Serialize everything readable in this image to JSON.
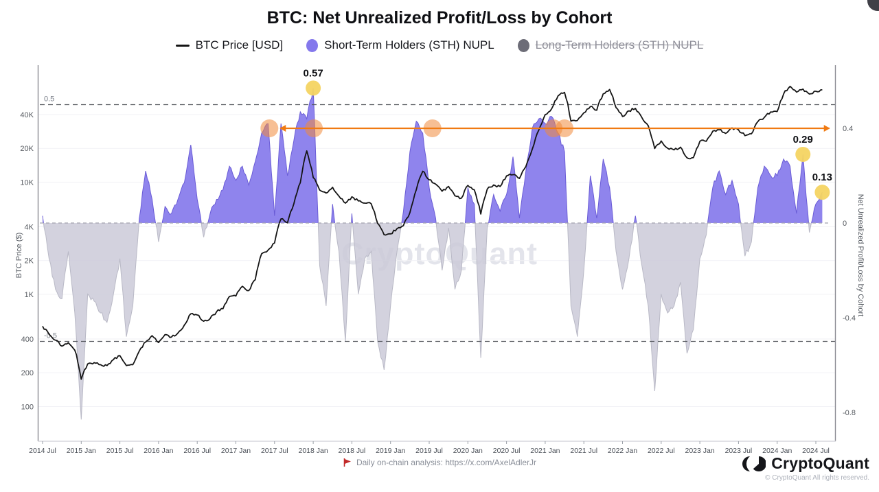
{
  "header": {
    "title": "BTC: Net Unrealized Profit/Loss by Cohort"
  },
  "legend": {
    "items": [
      {
        "label": "BTC Price [USD]",
        "marker": "line",
        "color": "#141414",
        "disabled": false
      },
      {
        "label": "Short-Term Holders (STH) NUPL",
        "marker": "circle",
        "color": "#8478ec",
        "disabled": false
      },
      {
        "label": "Long-Term Holders (STH) NUPL",
        "marker": "circle",
        "color": "#6d6d78",
        "disabled": true
      }
    ]
  },
  "watermark": "CryptoQuant",
  "footer": {
    "icon": "red-flag-icon",
    "text": "Daily on-chain analysis: https://x.com/AxelAdlerJr"
  },
  "branding": {
    "name": "CryptoQuant",
    "copyright": "© CryptoQuant All rights reserved."
  },
  "chart_data": {
    "type": "composite",
    "x_start": "2014-07",
    "x_freq": "monthly",
    "x_tick_labels": [
      "2014 Jul",
      "2015 Jan",
      "2015 Jul",
      "2016 Jan",
      "2016 Jul",
      "2017 Jan",
      "2017 Jul",
      "2018 Jan",
      "2018 Jul",
      "2019 Jan",
      "2019 Jul",
      "2020 Jan",
      "2020 Jul",
      "2021 Jan",
      "2021 Jul",
      "2022 Jan",
      "2022 Jul",
      "2023 Jan",
      "2023 Jul",
      "2024 Jan",
      "2024 Jul"
    ],
    "x_tick_month_index": [
      0,
      6,
      12,
      18,
      24,
      30,
      36,
      42,
      48,
      54,
      60,
      66,
      72,
      78,
      84,
      90,
      96,
      102,
      108,
      114,
      120
    ],
    "left_axis": {
      "title": "BTC Price ($)",
      "scale": "log",
      "ticks": [
        "100",
        "200",
        "400",
        "1K",
        "2K",
        "4K",
        "10K",
        "20K",
        "40K"
      ],
      "tick_values": [
        100,
        200,
        400,
        1000,
        2000,
        4000,
        10000,
        20000,
        40000
      ]
    },
    "right_axis": {
      "title": "Net Unrealized Profit/Loss by Cohort",
      "ticks": [
        "0.4",
        "0",
        "-0.4",
        "-0.8"
      ],
      "tick_values": [
        0.4,
        0,
        -0.4,
        -0.8
      ]
    },
    "series": [
      {
        "name": "BTC Price [USD]",
        "type": "line",
        "axis": "left",
        "color": "#141414",
        "values": [
          520,
          440,
          390,
          345,
          370,
          318,
          175,
          240,
          246,
          236,
          232,
          262,
          284,
          232,
          236,
          312,
          376,
          428,
          372,
          438,
          416,
          452,
          532,
          670,
          655,
          576,
          608,
          700,
          744,
          958,
          966,
          1180,
          1080,
          1350,
          2300,
          2480,
          2870,
          4700,
          4340,
          6450,
          9900,
          19000,
          11000,
          8500,
          8000,
          9000,
          7500,
          6500,
          7400,
          6800,
          6500,
          6400,
          4300,
          3400,
          3460,
          3850,
          4100,
          5350,
          8550,
          12500,
          10500,
          9600,
          8300,
          9150,
          7550,
          7200,
          9350,
          8550,
          5200,
          8650,
          9450,
          9140,
          11350,
          11650,
          10780,
          13800,
          19700,
          29000,
          40000,
          45100,
          58800,
          63000,
          35000,
          35500,
          41500,
          47100,
          43800,
          61300,
          67000,
          46200,
          38500,
          43200,
          45500,
          37650,
          31800,
          19950,
          23300,
          20050,
          19400,
          20500,
          16500,
          16550,
          23100,
          23150,
          28450,
          29250,
          27200,
          30450,
          29250,
          25950,
          26950,
          34650,
          37700,
          42250,
          42550,
          61150,
          71500,
          63500,
          67500,
          61000,
          64600,
          66500
        ]
      },
      {
        "name": "Short-Term Holders (STH) NUPL",
        "type": "area",
        "axis": "right",
        "positive_color": "#857aeb",
        "negative_color": "#cbcad8",
        "positive_stroke": "#6a5cd6",
        "negative_stroke": "#b9b9c6",
        "values": [
          0.03,
          -0.15,
          -0.28,
          -0.32,
          -0.12,
          -0.38,
          -0.83,
          -0.3,
          -0.33,
          -0.38,
          -0.42,
          -0.3,
          -0.15,
          -0.48,
          -0.35,
          0.02,
          0.22,
          0.1,
          -0.08,
          0.07,
          0.04,
          0.1,
          0.17,
          0.33,
          0.1,
          -0.06,
          0.04,
          0.1,
          0.14,
          0.24,
          0.18,
          0.24,
          0.16,
          0.26,
          0.38,
          0.42,
          0.03,
          0.42,
          0.2,
          0.35,
          0.47,
          0.44,
          0.57,
          -0.18,
          -0.35,
          0.08,
          -0.12,
          -0.5,
          0.04,
          -0.3,
          -0.15,
          -0.12,
          -0.5,
          -0.62,
          -0.35,
          -0.12,
          0.05,
          0.3,
          0.43,
          0.38,
          0.15,
          0.02,
          -0.2,
          -0.02,
          -0.28,
          -0.2,
          0.15,
          0.08,
          -0.57,
          -0.02,
          0.12,
          0.05,
          0.12,
          0.28,
          0.02,
          0.22,
          0.4,
          0.44,
          0.42,
          0.45,
          0.38,
          0.3,
          -0.35,
          -0.48,
          -0.2,
          0.2,
          0.02,
          0.27,
          0.15,
          -0.12,
          -0.28,
          -0.15,
          0.03,
          -0.18,
          -0.35,
          -0.71,
          -0.3,
          -0.38,
          -0.35,
          -0.25,
          -0.55,
          -0.45,
          -0.15,
          -0.05,
          0.15,
          0.22,
          0.12,
          0.18,
          0.08,
          -0.14,
          -0.08,
          0.15,
          0.24,
          0.2,
          0.2,
          0.27,
          0.24,
          0.04,
          0.29,
          -0.04,
          0.08,
          0.13
        ]
      }
    ],
    "reference_lines": [
      {
        "value": 0.5,
        "label": "0.5"
      },
      {
        "value": -0.5,
        "label": "-0.5"
      },
      {
        "value": 0,
        "label": ""
      }
    ],
    "trend_arrow": {
      "value": 0.4,
      "from_month": 36.9,
      "to_month": 122.1,
      "color": "#f07a12"
    },
    "touch_markers": {
      "value": 0.4,
      "month_indices": [
        35.2,
        42.1,
        60.5,
        79.3,
        81.0
      ],
      "color": "#f08a3c",
      "radius": 13
    },
    "annotations": [
      {
        "label": "0.57",
        "month_index": 42,
        "value": 0.57
      },
      {
        "label": "0.29",
        "month_index": 118,
        "value": 0.29
      },
      {
        "label": "0.13",
        "month_index": 121,
        "value": 0.13
      }
    ],
    "annotation_marker_color": "#f4d462"
  }
}
